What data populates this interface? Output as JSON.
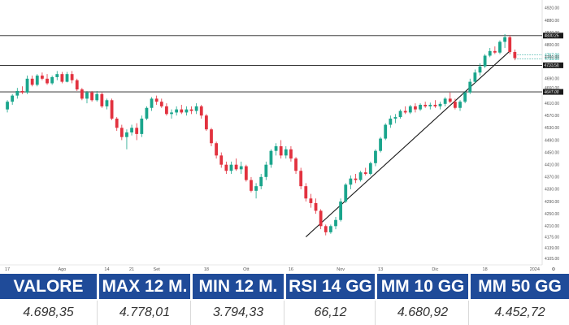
{
  "chart_data": {
    "type": "candlestick",
    "title": "",
    "xlabel": "",
    "ylabel": "",
    "ylim": [
      4105,
      4925
    ],
    "y_ticks": [
      "4105.00",
      "4139.00",
      "4175.00",
      "4210.00",
      "4250.00",
      "4290.00",
      "4330.00",
      "4370.00",
      "4410.00",
      "4450.00",
      "4490.00",
      "4530.00",
      "4570.00",
      "4610.00",
      "4650.00",
      "4690.00",
      "4730.00",
      "4760.00",
      "4800.00",
      "4840.00",
      "4880.00",
      "4920.00"
    ],
    "x_labels": [
      {
        "label": "17",
        "i": 0
      },
      {
        "label": "Ago",
        "i": 11
      },
      {
        "label": "14",
        "i": 20
      },
      {
        "label": "21",
        "i": 25
      },
      {
        "label": "Set",
        "i": 30
      },
      {
        "label": "18",
        "i": 40
      },
      {
        "label": "Ott",
        "i": 48
      },
      {
        "label": "16",
        "i": 57
      },
      {
        "label": "Nov",
        "i": 67
      },
      {
        "label": "13",
        "i": 75
      },
      {
        "label": "Dic",
        "i": 86
      },
      {
        "label": "18",
        "i": 96
      },
      {
        "label": "2024",
        "i": 106
      }
    ],
    "level_lines": [
      {
        "value": 4830.25,
        "label": "4830.25"
      },
      {
        "value": 4733.5,
        "label": "4733.50"
      },
      {
        "value": 4647.0,
        "label": "4647.00"
      }
    ],
    "price_tags": [
      {
        "value": 4767.0,
        "label": "4767.00",
        "color": "#0a9e8f"
      },
      {
        "value": 4755.0,
        "label": "4755.00",
        "color": "#0a9e8f"
      }
    ],
    "extra_tick": {
      "value": 4660.0,
      "label": "4660.00"
    },
    "trendline": [
      {
        "i": 60,
        "value": 4175
      },
      {
        "i": 101,
        "value": 4780
      }
    ],
    "up_color": "#1aa58c",
    "down_color": "#e2323f",
    "candles": [
      {
        "o": 4590,
        "h": 4620,
        "l": 4580,
        "c": 4615
      },
      {
        "o": 4615,
        "h": 4640,
        "l": 4605,
        "c": 4635
      },
      {
        "o": 4635,
        "h": 4660,
        "l": 4625,
        "c": 4650
      },
      {
        "o": 4650,
        "h": 4665,
        "l": 4640,
        "c": 4645
      },
      {
        "o": 4645,
        "h": 4700,
        "l": 4640,
        "c": 4690
      },
      {
        "o": 4690,
        "h": 4700,
        "l": 4665,
        "c": 4670
      },
      {
        "o": 4670,
        "h": 4705,
        "l": 4665,
        "c": 4700
      },
      {
        "o": 4700,
        "h": 4710,
        "l": 4685,
        "c": 4690
      },
      {
        "o": 4690,
        "h": 4705,
        "l": 4670,
        "c": 4675
      },
      {
        "o": 4675,
        "h": 4700,
        "l": 4670,
        "c": 4695
      },
      {
        "o": 4695,
        "h": 4715,
        "l": 4685,
        "c": 4705
      },
      {
        "o": 4705,
        "h": 4712,
        "l": 4675,
        "c": 4680
      },
      {
        "o": 4680,
        "h": 4712,
        "l": 4678,
        "c": 4705
      },
      {
        "o": 4705,
        "h": 4715,
        "l": 4675,
        "c": 4685
      },
      {
        "o": 4685,
        "h": 4690,
        "l": 4650,
        "c": 4655
      },
      {
        "o": 4655,
        "h": 4660,
        "l": 4620,
        "c": 4625
      },
      {
        "o": 4625,
        "h": 4650,
        "l": 4610,
        "c": 4645
      },
      {
        "o": 4645,
        "h": 4650,
        "l": 4615,
        "c": 4620
      },
      {
        "o": 4620,
        "h": 4650,
        "l": 4615,
        "c": 4640
      },
      {
        "o": 4640,
        "h": 4645,
        "l": 4595,
        "c": 4600
      },
      {
        "o": 4600,
        "h": 4625,
        "l": 4590,
        "c": 4620
      },
      {
        "o": 4620,
        "h": 4625,
        "l": 4555,
        "c": 4560
      },
      {
        "o": 4560,
        "h": 4565,
        "l": 4520,
        "c": 4530
      },
      {
        "o": 4530,
        "h": 4540,
        "l": 4490,
        "c": 4500
      },
      {
        "o": 4500,
        "h": 4525,
        "l": 4460,
        "c": 4515
      },
      {
        "o": 4515,
        "h": 4540,
        "l": 4505,
        "c": 4530
      },
      {
        "o": 4530,
        "h": 4545,
        "l": 4490,
        "c": 4510
      },
      {
        "o": 4510,
        "h": 4570,
        "l": 4500,
        "c": 4560
      },
      {
        "o": 4560,
        "h": 4600,
        "l": 4555,
        "c": 4595
      },
      {
        "o": 4595,
        "h": 4630,
        "l": 4585,
        "c": 4625
      },
      {
        "o": 4625,
        "h": 4635,
        "l": 4605,
        "c": 4615
      },
      {
        "o": 4615,
        "h": 4625,
        "l": 4595,
        "c": 4600
      },
      {
        "o": 4600,
        "h": 4610,
        "l": 4570,
        "c": 4575
      },
      {
        "o": 4575,
        "h": 4590,
        "l": 4560,
        "c": 4580
      },
      {
        "o": 4580,
        "h": 4600,
        "l": 4570,
        "c": 4590
      },
      {
        "o": 4590,
        "h": 4605,
        "l": 4575,
        "c": 4580
      },
      {
        "o": 4580,
        "h": 4600,
        "l": 4570,
        "c": 4590
      },
      {
        "o": 4590,
        "h": 4600,
        "l": 4575,
        "c": 4585
      },
      {
        "o": 4585,
        "h": 4610,
        "l": 4575,
        "c": 4600
      },
      {
        "o": 4600,
        "h": 4605,
        "l": 4560,
        "c": 4570
      },
      {
        "o": 4570,
        "h": 4575,
        "l": 4520,
        "c": 4525
      },
      {
        "o": 4525,
        "h": 4530,
        "l": 4470,
        "c": 4480
      },
      {
        "o": 4480,
        "h": 4485,
        "l": 4430,
        "c": 4440
      },
      {
        "o": 4440,
        "h": 4450,
        "l": 4400,
        "c": 4410
      },
      {
        "o": 4410,
        "h": 4420,
        "l": 4380,
        "c": 4390
      },
      {
        "o": 4390,
        "h": 4420,
        "l": 4380,
        "c": 4410
      },
      {
        "o": 4410,
        "h": 4430,
        "l": 4390,
        "c": 4395
      },
      {
        "o": 4395,
        "h": 4420,
        "l": 4380,
        "c": 4405
      },
      {
        "o": 4405,
        "h": 4410,
        "l": 4355,
        "c": 4360
      },
      {
        "o": 4360,
        "h": 4370,
        "l": 4320,
        "c": 4325
      },
      {
        "o": 4325,
        "h": 4350,
        "l": 4300,
        "c": 4340
      },
      {
        "o": 4340,
        "h": 4380,
        "l": 4330,
        "c": 4370
      },
      {
        "o": 4370,
        "h": 4420,
        "l": 4360,
        "c": 4410
      },
      {
        "o": 4410,
        "h": 4460,
        "l": 4400,
        "c": 4455
      },
      {
        "o": 4455,
        "h": 4480,
        "l": 4440,
        "c": 4470
      },
      {
        "o": 4470,
        "h": 4490,
        "l": 4430,
        "c": 4440
      },
      {
        "o": 4440,
        "h": 4470,
        "l": 4430,
        "c": 4460
      },
      {
        "o": 4460,
        "h": 4470,
        "l": 4420,
        "c": 4430
      },
      {
        "o": 4430,
        "h": 4435,
        "l": 4380,
        "c": 4390
      },
      {
        "o": 4390,
        "h": 4400,
        "l": 4330,
        "c": 4340
      },
      {
        "o": 4340,
        "h": 4350,
        "l": 4290,
        "c": 4300
      },
      {
        "o": 4300,
        "h": 4315,
        "l": 4270,
        "c": 4285
      },
      {
        "o": 4285,
        "h": 4300,
        "l": 4250,
        "c": 4260
      },
      {
        "o": 4260,
        "h": 4265,
        "l": 4200,
        "c": 4210
      },
      {
        "o": 4210,
        "h": 4215,
        "l": 4180,
        "c": 4190
      },
      {
        "o": 4190,
        "h": 4215,
        "l": 4185,
        "c": 4210
      },
      {
        "o": 4210,
        "h": 4240,
        "l": 4200,
        "c": 4230
      },
      {
        "o": 4230,
        "h": 4300,
        "l": 4225,
        "c": 4290
      },
      {
        "o": 4290,
        "h": 4350,
        "l": 4285,
        "c": 4345
      },
      {
        "o": 4345,
        "h": 4375,
        "l": 4330,
        "c": 4365
      },
      {
        "o": 4365,
        "h": 4380,
        "l": 4350,
        "c": 4360
      },
      {
        "o": 4360,
        "h": 4390,
        "l": 4355,
        "c": 4385
      },
      {
        "o": 4385,
        "h": 4400,
        "l": 4375,
        "c": 4380
      },
      {
        "o": 4380,
        "h": 4420,
        "l": 4375,
        "c": 4415
      },
      {
        "o": 4415,
        "h": 4460,
        "l": 4405,
        "c": 4455
      },
      {
        "o": 4455,
        "h": 4500,
        "l": 4450,
        "c": 4495
      },
      {
        "o": 4495,
        "h": 4545,
        "l": 4490,
        "c": 4540
      },
      {
        "o": 4540,
        "h": 4570,
        "l": 4530,
        "c": 4560
      },
      {
        "o": 4560,
        "h": 4575,
        "l": 4545,
        "c": 4565
      },
      {
        "o": 4565,
        "h": 4590,
        "l": 4560,
        "c": 4585
      },
      {
        "o": 4585,
        "h": 4600,
        "l": 4575,
        "c": 4580
      },
      {
        "o": 4580,
        "h": 4605,
        "l": 4575,
        "c": 4600
      },
      {
        "o": 4600,
        "h": 4610,
        "l": 4580,
        "c": 4590
      },
      {
        "o": 4590,
        "h": 4610,
        "l": 4585,
        "c": 4605
      },
      {
        "o": 4605,
        "h": 4615,
        "l": 4595,
        "c": 4600
      },
      {
        "o": 4600,
        "h": 4612,
        "l": 4590,
        "c": 4605
      },
      {
        "o": 4605,
        "h": 4620,
        "l": 4595,
        "c": 4600
      },
      {
        "o": 4600,
        "h": 4615,
        "l": 4590,
        "c": 4608
      },
      {
        "o": 4608,
        "h": 4630,
        "l": 4600,
        "c": 4625
      },
      {
        "o": 4625,
        "h": 4645,
        "l": 4610,
        "c": 4615
      },
      {
        "o": 4615,
        "h": 4625,
        "l": 4590,
        "c": 4595
      },
      {
        "o": 4595,
        "h": 4620,
        "l": 4585,
        "c": 4615
      },
      {
        "o": 4615,
        "h": 4650,
        "l": 4610,
        "c": 4645
      },
      {
        "o": 4645,
        "h": 4690,
        "l": 4640,
        "c": 4680
      },
      {
        "o": 4680,
        "h": 4720,
        "l": 4675,
        "c": 4710
      },
      {
        "o": 4710,
        "h": 4740,
        "l": 4700,
        "c": 4730
      },
      {
        "o": 4730,
        "h": 4770,
        "l": 4725,
        "c": 4765
      },
      {
        "o": 4765,
        "h": 4790,
        "l": 4760,
        "c": 4780
      },
      {
        "o": 4780,
        "h": 4795,
        "l": 4770,
        "c": 4775
      },
      {
        "o": 4775,
        "h": 4815,
        "l": 4770,
        "c": 4810
      },
      {
        "o": 4810,
        "h": 4835,
        "l": 4790,
        "c": 4825
      },
      {
        "o": 4825,
        "h": 4832,
        "l": 4770,
        "c": 4777
      },
      {
        "o": 4777,
        "h": 4785,
        "l": 4750,
        "c": 4757
      }
    ]
  },
  "stats": {
    "headers": [
      "VALORE",
      "MAX 12 M.",
      "MIN 12 M.",
      "RSI 14 GG",
      "MM 10 GG",
      "MM 50 GG"
    ],
    "values": [
      "4.698,35",
      "4.778,01",
      "3.794,33",
      "66,12",
      "4.680,92",
      "4.452,72"
    ],
    "header_color": "#1f4b99"
  }
}
